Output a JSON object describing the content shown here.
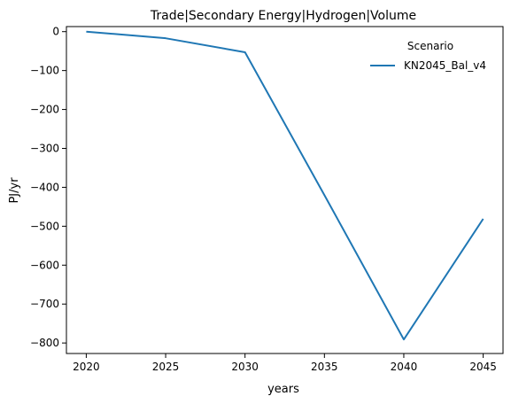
{
  "chart_data": {
    "type": "line",
    "title": "Trade|Secondary Energy|Hydrogen|Volume",
    "xlabel": "years",
    "ylabel": "PJ/yr",
    "xlim": [
      2018.75,
      2046.25
    ],
    "ylim": [
      -827,
      13
    ],
    "x_ticks": [
      2020,
      2025,
      2030,
      2035,
      2040,
      2045
    ],
    "y_ticks": [
      0,
      -100,
      -200,
      -300,
      -400,
      -500,
      -600,
      -700,
      -800
    ],
    "grid": false,
    "legend": {
      "title": "Scenario",
      "placement": "top-right"
    },
    "series": [
      {
        "name": "KN2045_Bal_v4",
        "color": "#1f77b4",
        "x": [
          2020,
          2025,
          2030,
          2035,
          2040,
          2045
        ],
        "y": [
          0,
          -17,
          -53,
          -420,
          -791,
          -481
        ]
      }
    ]
  }
}
